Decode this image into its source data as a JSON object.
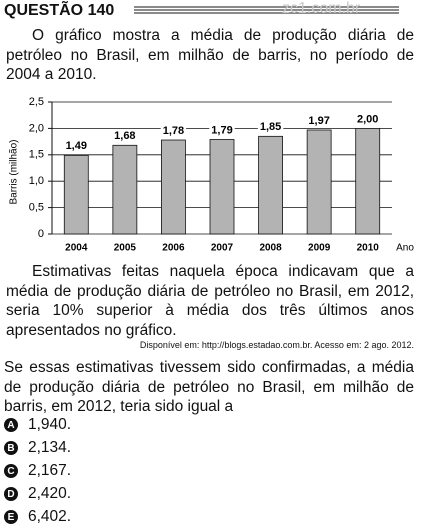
{
  "header": {
    "title": "QUESTÃO 140",
    "watermark": "zc1.com.br"
  },
  "intro": "O gráfico mostra a média de produção diária de petróleo no Brasil, em milhão de barris, no período de 2004 a 2010.",
  "chart_data": {
    "type": "bar",
    "y_label": "Barris (milhão)",
    "x_label": "Ano",
    "categories": [
      "2004",
      "2005",
      "2006",
      "2007",
      "2008",
      "2009",
      "2010"
    ],
    "values": [
      1.49,
      1.68,
      1.78,
      1.79,
      1.85,
      1.97,
      2.0
    ],
    "value_labels": [
      "1,49",
      "1,68",
      "1,78",
      "1,79",
      "1,85",
      "1,97",
      "2,00"
    ],
    "color": "#b3b3b3",
    "ylim": [
      0,
      2.5
    ],
    "yticks": [
      0,
      {
        "value": 0.5,
        "label": "0,5"
      },
      {
        "value": 1.0,
        "label": "1,0"
      },
      {
        "value": 1.5,
        "label": "1,5"
      },
      {
        "value": 2.0,
        "label": "2,0"
      },
      {
        "value": 2.5,
        "label": "2,5"
      }
    ],
    "grid": true
  },
  "context": "Estimativas feitas naquela época indicavam que a média de produção diária de petróleo no Brasil, em 2012, seria 10% superior à média dos três últimos anos apresentados no gráfico.",
  "source": "Disponível em: http://blogs.estadao.com.br. Acesso em: 2 ago. 2012.",
  "question": "Se essas estimativas tivessem sido confirmadas, a média de produção diária de petróleo no Brasil, em milhão de barris, em 2012, teria sido igual a",
  "options": [
    {
      "letter": "A",
      "text": "1,940."
    },
    {
      "letter": "B",
      "text": "2,134."
    },
    {
      "letter": "C",
      "text": "2,167."
    },
    {
      "letter": "D",
      "text": "2,420."
    },
    {
      "letter": "E",
      "text": "6,402."
    }
  ]
}
